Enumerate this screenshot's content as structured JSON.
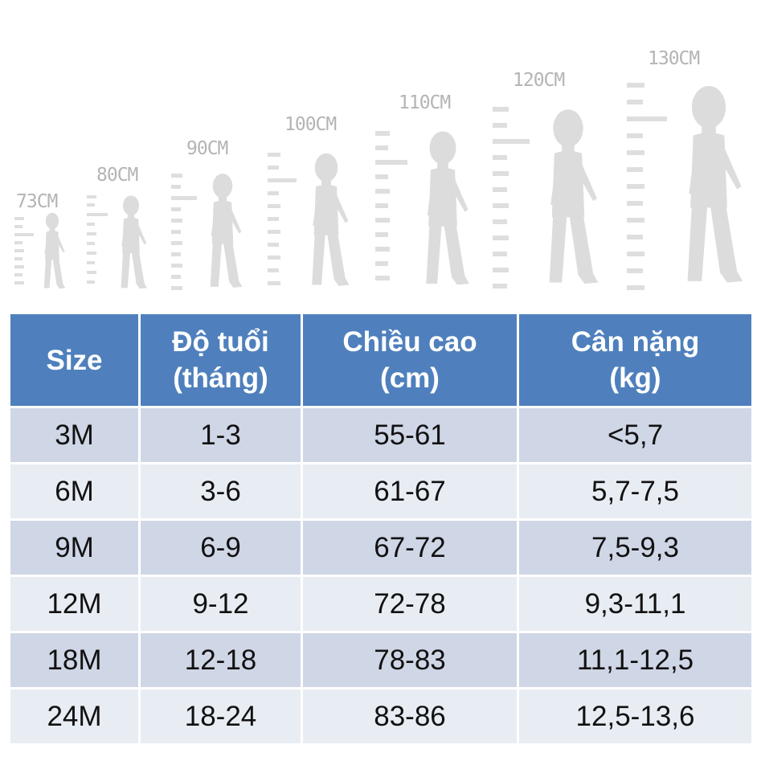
{
  "figures": [
    {
      "label": "73CM"
    },
    {
      "label": "80CM"
    },
    {
      "label": "90CM"
    },
    {
      "label": "100CM"
    },
    {
      "label": "110CM"
    },
    {
      "label": "120CM"
    },
    {
      "label": "130CM"
    }
  ],
  "table": {
    "headers": [
      {
        "line1": "Size",
        "line2": ""
      },
      {
        "line1": "Độ tuổi",
        "line2": "(tháng)"
      },
      {
        "line1": "Chiều cao",
        "line2": "(cm)"
      },
      {
        "line1": "Cân nặng",
        "line2": "(kg)"
      }
    ],
    "rows": [
      {
        "size": "3M",
        "age": "1-3",
        "height": "55-61",
        "weight": "<5,7"
      },
      {
        "size": "6M",
        "age": "3-6",
        "height": "61-67",
        "weight": "5,7-7,5"
      },
      {
        "size": "9M",
        "age": "6-9",
        "height": "67-72",
        "weight": "7,5-9,3"
      },
      {
        "size": "12M",
        "age": "9-12",
        "height": "72-78",
        "weight": "9,3-11,1"
      },
      {
        "size": "18M",
        "age": "12-18",
        "height": "78-83",
        "weight": "11,1-12,5"
      },
      {
        "size": "24M",
        "age": "18-24",
        "height": "83-86",
        "weight": "12,5-13,6"
      }
    ],
    "colors": {
      "header_bg": "#4f80bd",
      "row_odd": "#cfd6e6",
      "row_even": "#e8ecf3"
    }
  }
}
